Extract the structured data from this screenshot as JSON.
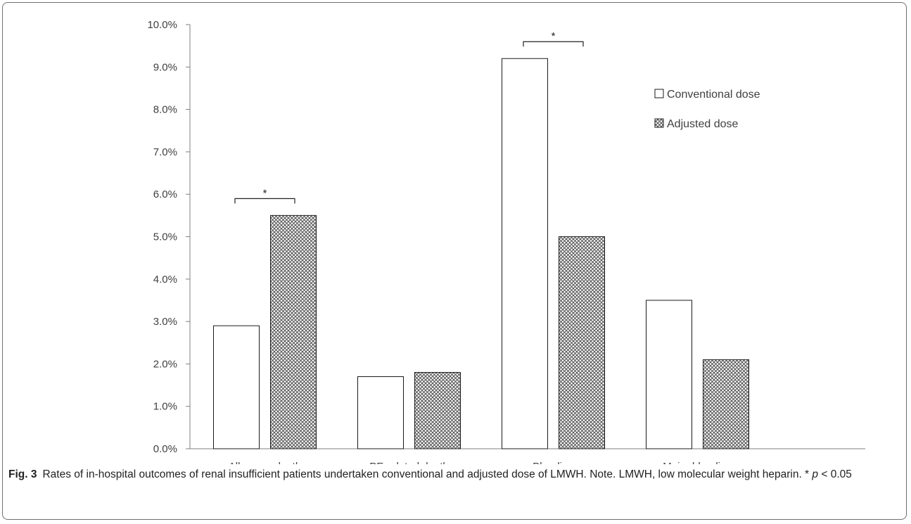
{
  "chart_data": {
    "type": "bar",
    "categories": [
      "All-cause death",
      "PE-related death",
      "Bleeding",
      "Major bleeding"
    ],
    "series": [
      {
        "name": "Conventional dose",
        "values": [
          2.9,
          1.7,
          9.2,
          3.5
        ],
        "style": "plain",
        "color": "#ffffff"
      },
      {
        "name": "Adjusted dose",
        "values": [
          5.5,
          1.8,
          5.0,
          2.1
        ],
        "style": "crosshatch",
        "color": "#555555"
      }
    ],
    "ylim": [
      0,
      10
    ],
    "y_ticks": [
      "0.0%",
      "1.0%",
      "2.0%",
      "3.0%",
      "4.0%",
      "5.0%",
      "6.0%",
      "7.0%",
      "8.0%",
      "9.0%",
      "10.0%"
    ],
    "y_tick_values": [
      0,
      1,
      2,
      3,
      4,
      5,
      6,
      7,
      8,
      9,
      10
    ],
    "grid": false,
    "legend_position": "right",
    "significance": [
      {
        "category": "All-cause death",
        "mark": "*"
      },
      {
        "category": "Bleeding",
        "mark": "*"
      }
    ]
  },
  "caption": {
    "label": "Fig. 3",
    "text_before_p": "Rates of in-hospital outcomes of renal insufficient patients undertaken conventional and adjusted dose of LMWH. Note. LMWH, low molecular weight heparin. * ",
    "p_symbol": "p",
    "text_after_p": " < 0.05"
  }
}
